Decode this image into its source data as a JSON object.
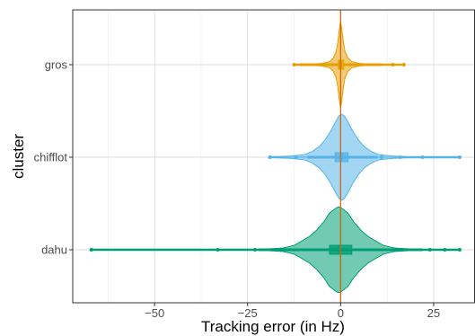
{
  "chart_data": {
    "type": "violin",
    "xlabel": "Tracking error (in Hz)",
    "ylabel": "cluster",
    "xlim": [
      -72,
      36
    ],
    "x_ticks": [
      -50,
      -25,
      0,
      25
    ],
    "x_tick_labels": [
      "−50",
      "−25",
      "0",
      "25"
    ],
    "categories": [
      "gros",
      "chifflot",
      "dahu"
    ],
    "grid": true,
    "reference_line": {
      "x": 0,
      "color": "#d55e00"
    },
    "series": [
      {
        "category": "gros",
        "color": "#e69f00",
        "range": [
          -12.5,
          17
        ],
        "iqr": [
          -0.6,
          0.8
        ],
        "median": 0,
        "whisker": [
          -11,
          11
        ],
        "outliers": [
          -12.5,
          14,
          17
        ],
        "profile": [
          [
            0,
            1
          ],
          [
            0.3,
            0.85
          ],
          [
            0.7,
            0.55
          ],
          [
            1.2,
            0.3
          ],
          [
            2,
            0.15
          ],
          [
            3,
            0.07
          ],
          [
            5,
            0.03
          ],
          [
            8,
            0.012
          ],
          [
            12,
            0.005
          ],
          [
            17,
            0
          ]
        ]
      },
      {
        "category": "chifflot",
        "color": "#56b4e9",
        "range": [
          -19,
          32
        ],
        "iqr": [
          -1.5,
          2
        ],
        "median": 0.3,
        "whisker": [
          -9,
          10
        ],
        "outliers": [
          -19,
          -12,
          11,
          16,
          22,
          32
        ],
        "profile": [
          [
            0,
            1
          ],
          [
            0.8,
            0.95
          ],
          [
            1.8,
            0.8
          ],
          [
            3,
            0.6
          ],
          [
            4.5,
            0.4
          ],
          [
            6,
            0.25
          ],
          [
            8,
            0.13
          ],
          [
            10,
            0.06
          ],
          [
            14,
            0.025
          ],
          [
            20,
            0.01
          ],
          [
            32,
            0
          ]
        ]
      },
      {
        "category": "dahu",
        "color": "#009e73",
        "range": [
          -67,
          32
        ],
        "iqr": [
          -3,
          3
        ],
        "median": -0.5,
        "whisker": [
          -22,
          22
        ],
        "outliers": [
          -67,
          -33,
          -23,
          24,
          28,
          32
        ],
        "profile": [
          [
            0,
            1
          ],
          [
            1,
            0.95
          ],
          [
            2.5,
            0.85
          ],
          [
            4,
            0.65
          ],
          [
            6,
            0.45
          ],
          [
            8,
            0.3
          ],
          [
            10,
            0.2
          ],
          [
            12,
            0.1
          ],
          [
            15,
            0.04
          ],
          [
            20,
            0.015
          ],
          [
            30,
            0.005
          ],
          [
            67,
            0
          ]
        ]
      }
    ]
  }
}
